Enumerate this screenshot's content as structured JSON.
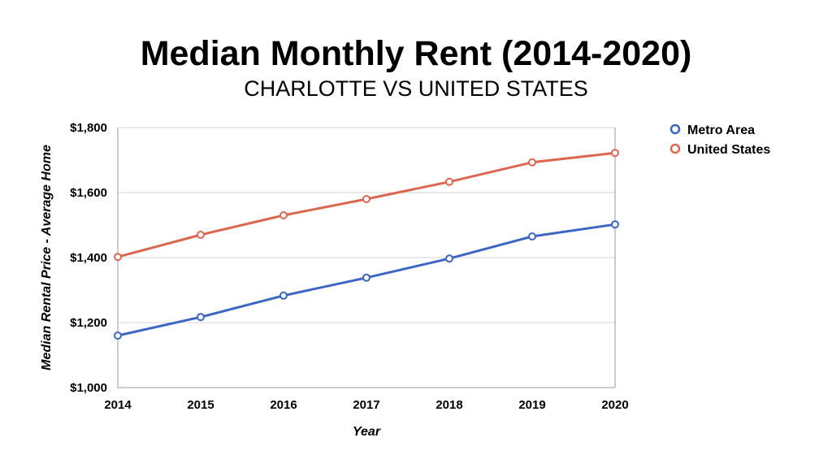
{
  "chart_data": {
    "type": "line",
    "title": "Median Monthly Rent (2014-2020)",
    "subtitle": "CHARLOTTE VS UNITED STATES",
    "xlabel": "Year",
    "ylabel": "Median Rental Price - Average Home",
    "categories": [
      "2014",
      "2015",
      "2016",
      "2017",
      "2018",
      "2019",
      "2020"
    ],
    "ylim": [
      1000,
      1800
    ],
    "yticks": [
      1000,
      1200,
      1400,
      1600,
      1800
    ],
    "ytick_labels": [
      "$1,000",
      "$1,200",
      "$1,400",
      "$1,600",
      "$1,800"
    ],
    "grid": true,
    "legend_position": "top-right",
    "series": [
      {
        "name": "Metro Area",
        "color": "#3b66c4",
        "values": [
          1160,
          1217,
          1283,
          1338,
          1397,
          1465,
          1502
        ]
      },
      {
        "name": "United States",
        "color": "#dd6650",
        "values": [
          1402,
          1470,
          1530,
          1580,
          1633,
          1693,
          1722
        ]
      }
    ]
  }
}
